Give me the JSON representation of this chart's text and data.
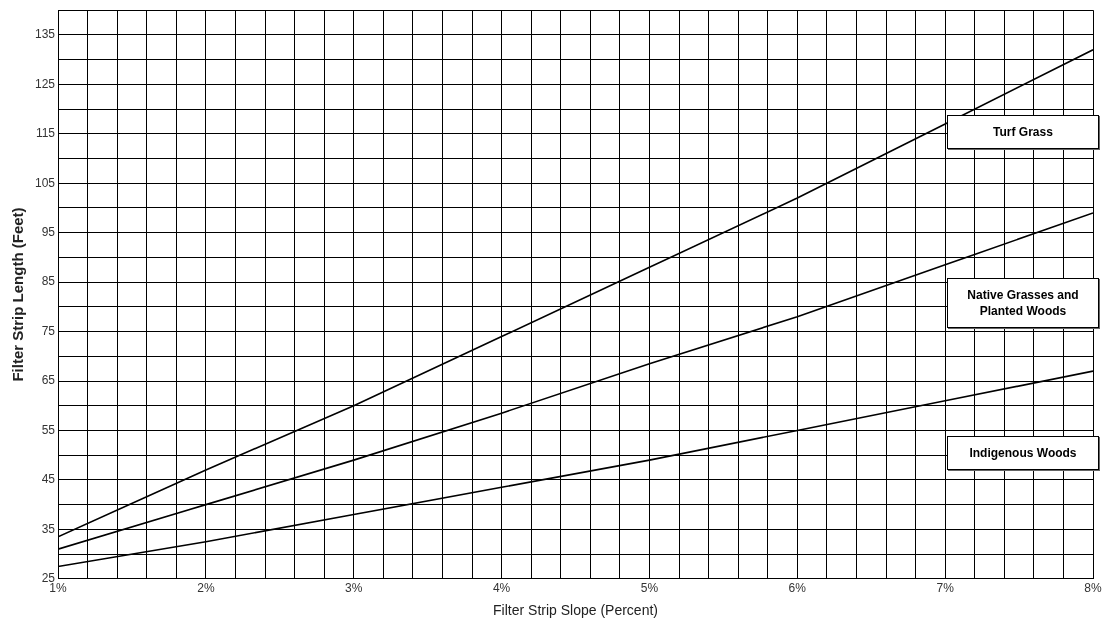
{
  "chart_data": {
    "type": "line",
    "xlabel": "Filter Strip Slope (Percent)",
    "ylabel": "Filter Strip Length (Feet)",
    "x": [
      1,
      2,
      3,
      4,
      5,
      6,
      7,
      8
    ],
    "series": [
      {
        "name": "Turf Grass",
        "color": "#000000",
        "values": [
          33.5,
          47,
          60,
          74,
          88,
          102,
          117,
          132
        ]
      },
      {
        "name": "Native Grasses and Planted Woods",
        "color": "#000000",
        "values": [
          31,
          40,
          49,
          58.5,
          68.5,
          78,
          88.5,
          99
        ]
      },
      {
        "name": "Indigenous Woods",
        "color": "#000000",
        "values": [
          27.5,
          32.5,
          38,
          43.5,
          49,
          55,
          61,
          67
        ]
      }
    ],
    "xlim": [
      1,
      8
    ],
    "ylim": [
      25,
      140
    ],
    "xticks": [
      {
        "value": 1,
        "label": "1%"
      },
      {
        "value": 1.2,
        "label": null
      },
      {
        "value": 1.4,
        "label": null
      },
      {
        "value": 1.6,
        "label": null
      },
      {
        "value": 1.8,
        "label": null
      },
      {
        "value": 2,
        "label": "2%"
      },
      {
        "value": 2.2,
        "label": null
      },
      {
        "value": 2.4,
        "label": null
      },
      {
        "value": 2.6,
        "label": null
      },
      {
        "value": 2.8,
        "label": null
      },
      {
        "value": 3,
        "label": "3%"
      },
      {
        "value": 3.2,
        "label": null
      },
      {
        "value": 3.4,
        "label": null
      },
      {
        "value": 3.6,
        "label": null
      },
      {
        "value": 3.8,
        "label": null
      },
      {
        "value": 4,
        "label": "4%"
      },
      {
        "value": 4.2,
        "label": null
      },
      {
        "value": 4.4,
        "label": null
      },
      {
        "value": 4.6,
        "label": null
      },
      {
        "value": 4.8,
        "label": null
      },
      {
        "value": 5,
        "label": "5%"
      },
      {
        "value": 5.2,
        "label": null
      },
      {
        "value": 5.4,
        "label": null
      },
      {
        "value": 5.6,
        "label": null
      },
      {
        "value": 5.8,
        "label": null
      },
      {
        "value": 6,
        "label": "6%"
      },
      {
        "value": 6.2,
        "label": null
      },
      {
        "value": 6.4,
        "label": null
      },
      {
        "value": 6.6,
        "label": null
      },
      {
        "value": 6.8,
        "label": null
      },
      {
        "value": 7,
        "label": "7%"
      },
      {
        "value": 7.2,
        "label": null
      },
      {
        "value": 7.4,
        "label": null
      },
      {
        "value": 7.6,
        "label": null
      },
      {
        "value": 7.8,
        "label": null
      },
      {
        "value": 8,
        "label": "8%"
      }
    ],
    "yticks": [
      25,
      {
        "value": 30,
        "label": null
      },
      35,
      {
        "value": 40,
        "label": null
      },
      45,
      {
        "value": 50,
        "label": null
      },
      55,
      {
        "value": 60,
        "label": null
      },
      65,
      {
        "value": 70,
        "label": null
      },
      75,
      {
        "value": 80,
        "label": null
      },
      85,
      {
        "value": 90,
        "label": null
      },
      95,
      {
        "value": 100,
        "label": null
      },
      105,
      {
        "value": 110,
        "label": null
      },
      115,
      {
        "value": 120,
        "label": null
      },
      125,
      {
        "value": 130,
        "label": null
      },
      135,
      {
        "value": 140,
        "label": null
      }
    ],
    "grid": true,
    "marker": "none",
    "line_style": "solid"
  }
}
